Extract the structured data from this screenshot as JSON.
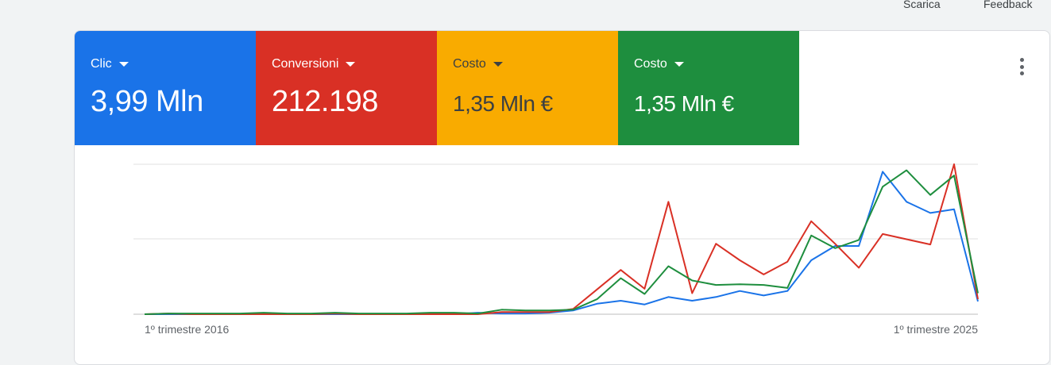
{
  "header": {
    "download_label": "Scarica",
    "feedback_label": "Feedback"
  },
  "metrics": [
    {
      "label": "Clic",
      "value": "3,99 Mln",
      "color": "#1a73e8",
      "text_color": "#ffffff"
    },
    {
      "label": "Conversioni",
      "value": "212.198",
      "color": "#d93025",
      "text_color": "#ffffff"
    },
    {
      "label": "Costo",
      "value": "1,35 Mln €",
      "color": "#f9ab00",
      "text_color": "#3c4043"
    },
    {
      "label": "Costo",
      "value": "1,35 Mln €",
      "color": "#1e8e3e",
      "text_color": "#ffffff"
    }
  ],
  "icons": {
    "more_menu": "more-vert-icon",
    "dropdown": "caret-down-icon"
  },
  "chart_data": {
    "type": "line",
    "x_tick_labels": [
      "1º trimestre 2016",
      "1º trimestre 2025"
    ],
    "grid": true,
    "y_axis_labels_shown": false,
    "series": [
      {
        "color": "#1a73e8",
        "values": [
          0,
          0,
          0,
          0,
          0,
          0,
          0,
          0,
          0,
          0,
          0,
          0,
          0,
          0,
          2,
          1,
          1,
          2,
          5,
          14,
          18,
          13,
          23,
          18,
          23,
          31,
          25,
          31,
          72,
          91,
          91,
          190,
          150,
          135,
          140,
          17
        ]
      },
      {
        "color": "#d93025",
        "values": [
          0,
          1,
          0,
          0,
          0,
          0,
          0,
          0,
          1,
          0,
          0,
          0,
          0,
          0,
          0,
          3,
          3,
          3,
          7,
          33,
          59,
          34,
          150,
          28,
          94,
          72,
          53,
          70,
          124,
          94,
          62,
          107,
          100,
          93,
          200,
          20
        ]
      },
      {
        "color": "#1e8e3e",
        "values": [
          0,
          1,
          1,
          1,
          1,
          2,
          1,
          1,
          2,
          1,
          1,
          1,
          2,
          2,
          1,
          6,
          5,
          5,
          6,
          20,
          48,
          27,
          64,
          45,
          39,
          40,
          39,
          35,
          105,
          88,
          99,
          170,
          192,
          159,
          185,
          28
        ]
      }
    ]
  }
}
